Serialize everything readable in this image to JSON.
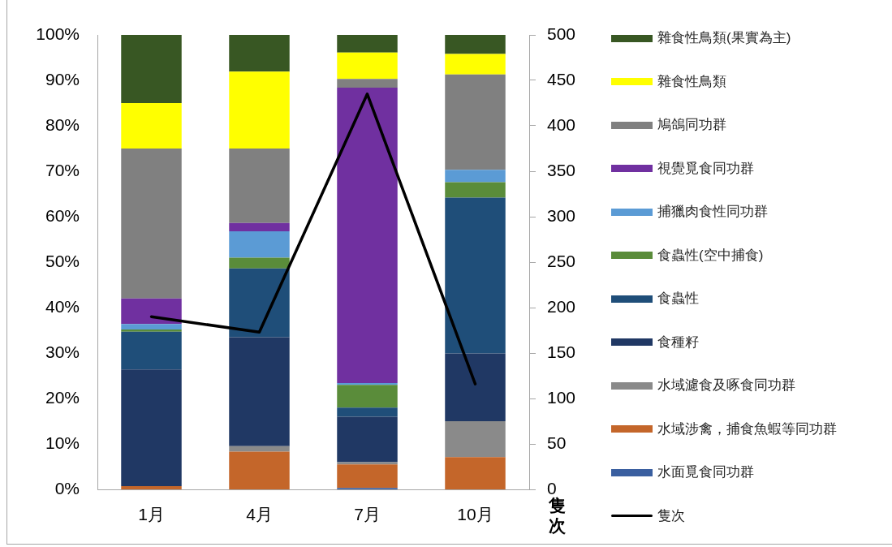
{
  "chart_data": {
    "type": "bar",
    "stacked": true,
    "categories": [
      "1月",
      "4月",
      "7月",
      "10月"
    ],
    "series": [
      {
        "name": "水面覓食同功群",
        "color": "#3a5fa0",
        "values": [
          0,
          0,
          0.3,
          0
        ]
      },
      {
        "name": "水域涉禽，捕食魚蝦等同功群",
        "color": "#c4662a",
        "values": [
          0.7,
          8.3,
          5.2,
          7.1
        ]
      },
      {
        "name": "水域濾食及啄食同功群",
        "color": "#8a8a8a",
        "values": [
          0,
          1.2,
          0.5,
          7.9
        ]
      },
      {
        "name": "食種籽",
        "color": "#203864",
        "values": [
          25.7,
          24.0,
          10.0,
          14.9
        ]
      },
      {
        "name": "食蟲性",
        "color": "#1f4e79",
        "values": [
          8.3,
          15.1,
          2.0,
          34.3
        ]
      },
      {
        "name": "食蟲性(空中捕食)",
        "color": "#5a8c3a",
        "values": [
          0.5,
          2.4,
          5.0,
          3.4
        ]
      },
      {
        "name": "捕獵肉食性同功群",
        "color": "#5b9bd5",
        "values": [
          1.2,
          5.8,
          0.4,
          2.7
        ]
      },
      {
        "name": "視覺覓食同功群",
        "color": "#7030a0",
        "values": [
          5.6,
          1.8,
          65.0,
          0
        ]
      },
      {
        "name": "鳩鴿同功群",
        "color": "#808080",
        "values": [
          33.0,
          16.4,
          1.9,
          21.0
        ]
      },
      {
        "name": "雜食性鳥類",
        "color": "#ffff00",
        "values": [
          10.0,
          16.9,
          5.8,
          4.5
        ]
      },
      {
        "name": "雜食性鳥類(果實為主)",
        "color": "#385723",
        "values": [
          15.0,
          8.1,
          3.9,
          4.2
        ]
      },
      {
        "name": "隻次",
        "type": "line",
        "axis": "y2",
        "color": "#000000",
        "values": [
          190,
          173,
          435,
          116
        ]
      }
    ],
    "ylim": [
      0,
      100
    ],
    "yticks": [
      {
        "value": 0,
        "label": "0%"
      },
      {
        "value": 10,
        "label": "10%"
      },
      {
        "value": 20,
        "label": "20%"
      },
      {
        "value": 30,
        "label": "30%"
      },
      {
        "value": 40,
        "label": "40%"
      },
      {
        "value": 50,
        "label": "50%"
      },
      {
        "value": 60,
        "label": "60%"
      },
      {
        "value": 70,
        "label": "70%"
      },
      {
        "value": 80,
        "label": "80%"
      },
      {
        "value": 90,
        "label": "90%"
      },
      {
        "value": 100,
        "label": "100%"
      }
    ],
    "y2lim": [
      0,
      500
    ],
    "y2ticks": [
      0,
      50,
      100,
      150,
      200,
      250,
      300,
      350,
      400,
      450,
      500
    ],
    "y2label": "隻次",
    "legend": "right",
    "marker": "none",
    "line_style": "solid"
  }
}
